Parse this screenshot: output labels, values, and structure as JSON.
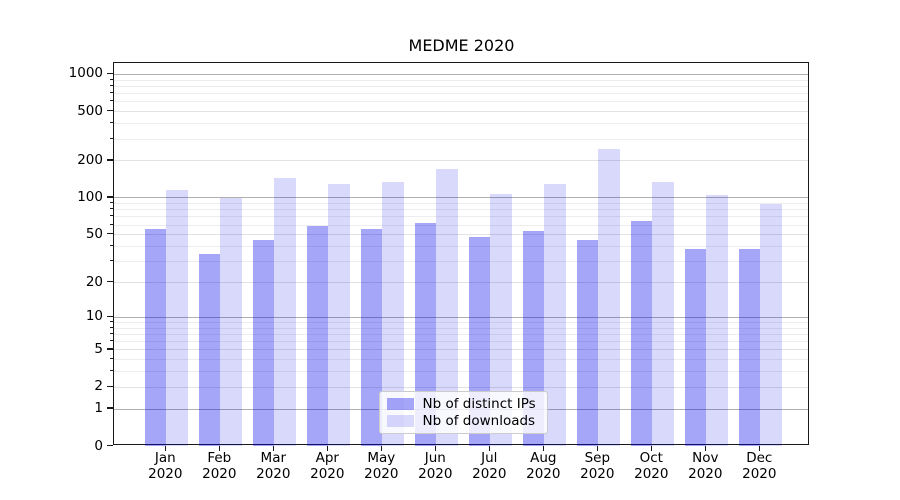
{
  "title": "MEDME 2020",
  "chart_data": {
    "type": "bar",
    "title": "MEDME 2020",
    "categories": [
      "Jan",
      "Feb",
      "Mar",
      "Apr",
      "May",
      "Jun",
      "Jul",
      "Aug",
      "Sep",
      "Oct",
      "Nov",
      "Dec"
    ],
    "category_year": "2020",
    "series": [
      {
        "name": "Nb of distinct IPs",
        "color": "rgba(0,0,235,0.35)",
        "values": [
          56,
          35,
          45,
          59,
          56,
          62,
          48,
          54,
          45,
          65,
          38,
          38
        ]
      },
      {
        "name": "Nb of downloads",
        "color": "rgba(0,0,235,0.15)",
        "values": [
          116,
          100,
          145,
          129,
          135,
          172,
          108,
          131,
          252,
          135,
          105,
          90
        ]
      }
    ],
    "yscale": "log1p",
    "y_tick_values": [
      1000,
      500,
      200,
      100,
      50,
      20,
      10,
      5,
      2,
      1,
      0
    ],
    "y_tick_labels": [
      "1000",
      "500",
      "200",
      "100",
      "50",
      "20",
      "10",
      "5",
      "2",
      "1",
      "0"
    ],
    "y_major_values": [
      1,
      10,
      100,
      1000
    ],
    "ylim": [
      0,
      1250
    ],
    "grid": "both",
    "legend_position": "lower-center",
    "colors": {
      "major_grid": "#b0b0b0",
      "labeled_minor_grid": "#e2e2e2",
      "minor_grid": "#ededed",
      "axis": "#1a1a1a"
    }
  }
}
